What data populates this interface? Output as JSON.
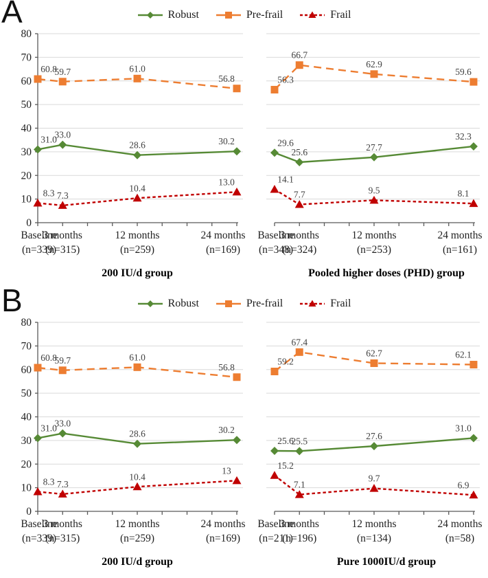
{
  "figure_title": "",
  "colors": {
    "robust": "#568A35",
    "pre_frail": "#ED7D31",
    "frail": "#C00000",
    "gridline": "#D9D9D9",
    "axis": "#595959",
    "tick_label": "#1f1f1f",
    "data_label": "#3f3f3f",
    "group_title": "#000000"
  },
  "panels": [
    {
      "letter": "A",
      "legend_labels": [
        "Robust",
        "Pre-frail",
        "Frail"
      ],
      "chart_indices": [
        0,
        1
      ]
    },
    {
      "letter": "B",
      "legend_labels": [
        "Robust",
        "Pre-frail",
        "Frail"
      ],
      "chart_indices": [
        2,
        3
      ]
    }
  ],
  "chart_data": [
    {
      "panel": "A",
      "position": "left",
      "type": "line",
      "title": "200 IU/d group",
      "categories": [
        "Baseline",
        "3 months",
        "12 months",
        "24 months"
      ],
      "category_n": [
        "(n=339)",
        "(n=315)",
        "(n=259)",
        "(n=169)"
      ],
      "x_months": [
        0,
        3,
        12,
        24
      ],
      "ylim": [
        0,
        80
      ],
      "yticks": [
        0,
        10,
        20,
        30,
        40,
        50,
        60,
        70,
        80
      ],
      "grid": true,
      "show_y_axis": true,
      "series": [
        {
          "name": "Robust",
          "marker": "diamond",
          "dash": "solid",
          "color": "#568A35",
          "values": [
            31.0,
            33.0,
            28.6,
            30.2
          ],
          "labels": [
            "31.0",
            "33.0",
            "28.6",
            "30.2"
          ]
        },
        {
          "name": "Pre-frail",
          "marker": "square",
          "dash": "long",
          "color": "#ED7D31",
          "values": [
            60.8,
            59.7,
            61.0,
            56.8
          ],
          "labels": [
            "60.8",
            "59.7",
            "61.0",
            "56.8"
          ]
        },
        {
          "name": "Frail",
          "marker": "triangle",
          "dash": "short",
          "color": "#C00000",
          "values": [
            8.3,
            7.3,
            10.4,
            13.0
          ],
          "labels": [
            "8.3",
            "7.3",
            "10.4",
            "13.0"
          ]
        }
      ]
    },
    {
      "panel": "A",
      "position": "right",
      "type": "line",
      "title": "Pooled higher doses (PHD) group",
      "categories": [
        "Baseline",
        "3 months",
        "12 months",
        "24 months"
      ],
      "category_n": [
        "(n=348)",
        "(n=324)",
        "(n=253)",
        "(n=161)"
      ],
      "x_months": [
        0,
        3,
        12,
        24
      ],
      "ylim": [
        0,
        80
      ],
      "yticks": [
        0,
        10,
        20,
        30,
        40,
        50,
        60,
        70,
        80
      ],
      "grid": true,
      "show_y_axis": false,
      "series": [
        {
          "name": "Robust",
          "marker": "diamond",
          "dash": "solid",
          "color": "#568A35",
          "values": [
            29.6,
            25.6,
            27.7,
            32.3
          ],
          "labels": [
            "29.6",
            "25.6",
            "27.7",
            "32.3"
          ]
        },
        {
          "name": "Pre-frail",
          "marker": "square",
          "dash": "long",
          "color": "#ED7D31",
          "values": [
            56.3,
            66.7,
            62.9,
            59.6
          ],
          "labels": [
            "56.3",
            "66.7",
            "62.9",
            "59.6"
          ]
        },
        {
          "name": "Frail",
          "marker": "triangle",
          "dash": "short",
          "color": "#C00000",
          "values": [
            14.1,
            7.7,
            9.5,
            8.1
          ],
          "labels": [
            "14.1",
            "7.7",
            "9.5",
            "8.1"
          ]
        }
      ]
    },
    {
      "panel": "B",
      "position": "left",
      "type": "line",
      "title": "200 IU/d group",
      "categories": [
        "Baseline",
        "3 months",
        "12 months",
        "24 months"
      ],
      "category_n": [
        "(n=339)",
        "(n=315)",
        "(n=259)",
        "(n=169)"
      ],
      "x_months": [
        0,
        3,
        12,
        24
      ],
      "ylim": [
        0,
        80
      ],
      "yticks": [
        0,
        10,
        20,
        30,
        40,
        50,
        60,
        70,
        80
      ],
      "grid": true,
      "show_y_axis": true,
      "series": [
        {
          "name": "Robust",
          "marker": "diamond",
          "dash": "solid",
          "color": "#568A35",
          "values": [
            31.0,
            33.0,
            28.6,
            30.2
          ],
          "labels": [
            "31.0",
            "33.0",
            "28.6",
            "30.2"
          ]
        },
        {
          "name": "Pre-frail",
          "marker": "square",
          "dash": "long",
          "color": "#ED7D31",
          "values": [
            60.8,
            59.7,
            61.0,
            56.8
          ],
          "labels": [
            "60.8",
            "59.7",
            "61.0",
            "56.8"
          ]
        },
        {
          "name": "Frail",
          "marker": "triangle",
          "dash": "short",
          "color": "#C00000",
          "values": [
            8.3,
            7.3,
            10.4,
            13
          ],
          "labels": [
            "8.3",
            "7.3",
            "10.4",
            "13"
          ]
        }
      ]
    },
    {
      "panel": "B",
      "position": "right",
      "type": "line",
      "title": "Pure 1000IU/d group",
      "categories": [
        "Baseline",
        "3 months",
        "12 months",
        "24 months"
      ],
      "category_n": [
        "(n=211)",
        "(n=196)",
        "(n=134)",
        "(n=58)"
      ],
      "x_months": [
        0,
        3,
        12,
        24
      ],
      "ylim": [
        0,
        80
      ],
      "yticks": [
        0,
        10,
        20,
        30,
        40,
        50,
        60,
        70,
        80
      ],
      "grid": true,
      "show_y_axis": false,
      "series": [
        {
          "name": "Robust",
          "marker": "diamond",
          "dash": "solid",
          "color": "#568A35",
          "values": [
            25.6,
            25.5,
            27.6,
            31.0
          ],
          "labels": [
            "25.6",
            "25.5",
            "27.6",
            "31.0"
          ]
        },
        {
          "name": "Pre-frail",
          "marker": "square",
          "dash": "long",
          "color": "#ED7D31",
          "values": [
            59.2,
            67.4,
            62.7,
            62.1
          ],
          "labels": [
            "59.2",
            "67.4",
            "62.7",
            "62.1"
          ]
        },
        {
          "name": "Frail",
          "marker": "triangle",
          "dash": "short",
          "color": "#C00000",
          "values": [
            15.2,
            7.1,
            9.7,
            6.9
          ],
          "labels": [
            "15.2",
            "7.1",
            "9.7",
            "6.9"
          ]
        }
      ]
    }
  ]
}
